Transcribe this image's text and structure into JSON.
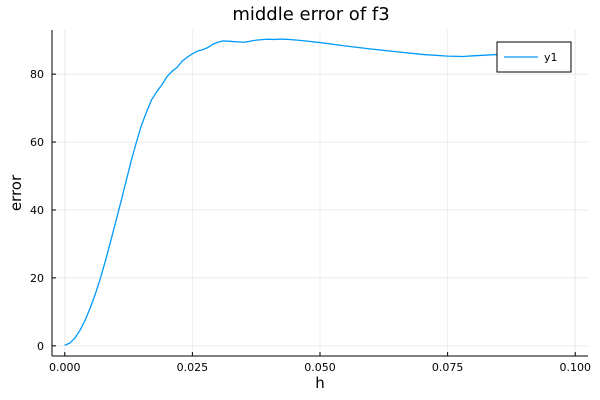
{
  "chart_data": {
    "type": "line",
    "title": "middle error of f3",
    "xlabel": "h",
    "ylabel": "error",
    "xlim": [
      -0.0025,
      0.1025
    ],
    "ylim": [
      -3,
      93
    ],
    "xticks": [
      0.0,
      0.025,
      0.05,
      0.075,
      0.1
    ],
    "xtick_labels": [
      "0.000",
      "0.025",
      "0.050",
      "0.075",
      "0.100"
    ],
    "yticks": [
      0,
      20,
      40,
      60,
      80
    ],
    "ytick_labels": [
      "0",
      "20",
      "40",
      "60",
      "80"
    ],
    "grid": true,
    "legend": {
      "position": "top-right"
    },
    "series": [
      {
        "name": "y1",
        "color": "#009AFA",
        "x": [
          0.0,
          0.001,
          0.002,
          0.003,
          0.004,
          0.005,
          0.006,
          0.007,
          0.008,
          0.009,
          0.01,
          0.011,
          0.012,
          0.013,
          0.014,
          0.015,
          0.016,
          0.017,
          0.018,
          0.019,
          0.02,
          0.021,
          0.022,
          0.023,
          0.024,
          0.025,
          0.026,
          0.027,
          0.028,
          0.029,
          0.03,
          0.031,
          0.032,
          0.033,
          0.034,
          0.035,
          0.036,
          0.037,
          0.038,
          0.039,
          0.04,
          0.041,
          0.042,
          0.043,
          0.044,
          0.045,
          0.047,
          0.05,
          0.055,
          0.06,
          0.065,
          0.07,
          0.075,
          0.078,
          0.08,
          0.085,
          0.088
        ],
        "y": [
          0.2,
          0.8,
          2.3,
          4.6,
          7.6,
          11.2,
          15.3,
          20.0,
          25.2,
          30.8,
          36.6,
          42.4,
          48.4,
          54.4,
          59.8,
          64.8,
          68.8,
          72.4,
          74.8,
          76.8,
          79.2,
          80.8,
          82.0,
          83.8,
          85.0,
          86.0,
          86.8,
          87.2,
          87.8,
          88.8,
          89.4,
          89.8,
          89.7,
          89.6,
          89.5,
          89.4,
          89.6,
          89.9,
          90.1,
          90.2,
          90.3,
          90.2,
          90.3,
          90.3,
          90.2,
          90.1,
          89.8,
          89.3,
          88.3,
          87.4,
          86.6,
          85.8,
          85.3,
          85.2,
          85.4,
          85.8,
          86.2
        ]
      }
    ]
  }
}
